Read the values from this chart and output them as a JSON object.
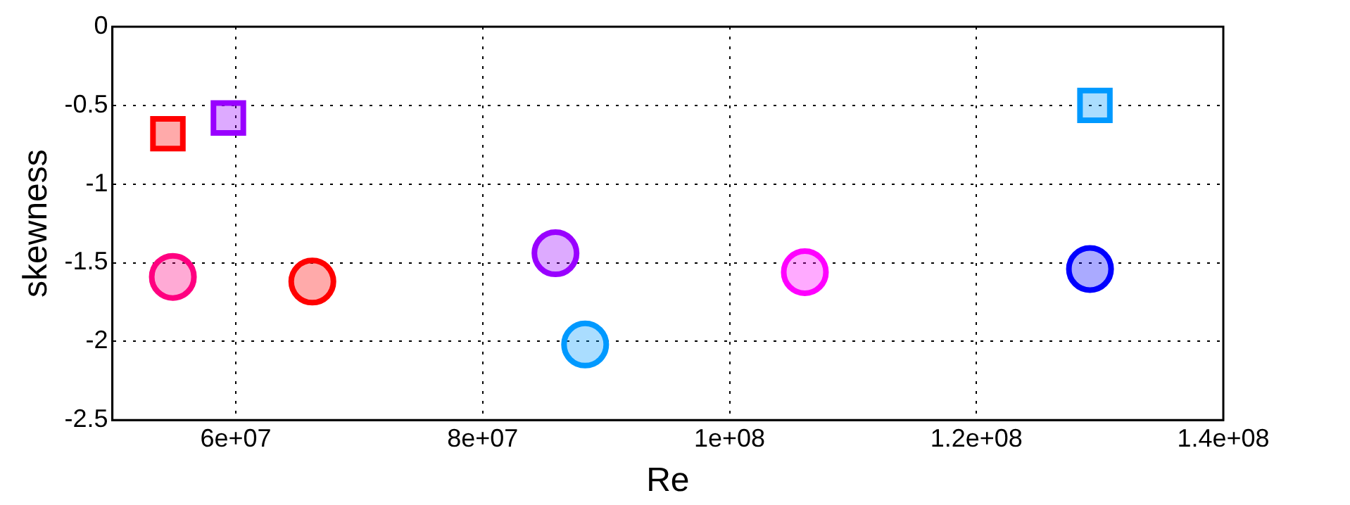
{
  "chart_data": {
    "type": "scatter",
    "xlabel": "Re",
    "ylabel": "skewness",
    "xlim": [
      50000000,
      140000000
    ],
    "xticks": [
      {
        "value": 60000000,
        "label": "6e+07"
      },
      {
        "value": 80000000,
        "label": "8e+07"
      },
      {
        "value": 100000000,
        "label": "1e+08"
      },
      {
        "value": 120000000,
        "label": "1.2e+08"
      },
      {
        "value": 140000000,
        "label": "1.4e+08"
      }
    ],
    "ylim": [
      -2.5,
      0
    ],
    "yticks": [
      0,
      -0.5,
      -1,
      -1.5,
      -2,
      -2.5
    ],
    "grid": true,
    "legend": false,
    "series": [
      {
        "marker": "square",
        "x": [
          54500000,
          59400000,
          129600000
        ],
        "values": [
          -0.68,
          -0.58,
          -0.5
        ],
        "colors": [
          "#ff0000",
          "#9900ff",
          "#0099ff"
        ]
      },
      {
        "marker": "circle",
        "x": [
          54900000,
          66200000,
          85900000,
          88300000,
          106100000,
          129200000
        ],
        "values": [
          -1.59,
          -1.62,
          -1.44,
          -2.02,
          -1.56,
          -1.54
        ],
        "colors": [
          "#ff0080",
          "#ff0000",
          "#9900ff",
          "#0099ff",
          "#ff00ff",
          "#0000ff"
        ]
      }
    ]
  }
}
